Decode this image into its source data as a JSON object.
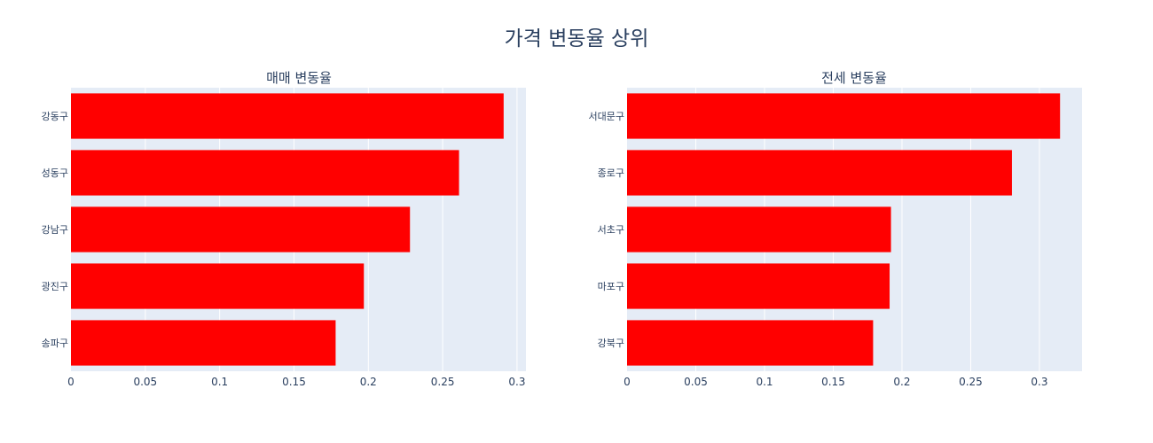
{
  "title": "가격 변동율 상위",
  "colors": {
    "bar": "#ff0000",
    "plot_bg": "#e5ecf6",
    "grid": "#ffffff",
    "text": "#2a3f5f"
  },
  "chart_data": [
    {
      "type": "bar",
      "orientation": "horizontal",
      "title": "매매 변동율",
      "categories": [
        "강동구",
        "성동구",
        "강남구",
        "광진구",
        "송파구"
      ],
      "values": [
        0.291,
        0.261,
        0.228,
        0.197,
        0.178
      ],
      "xlim": [
        0,
        0.306
      ],
      "xticks": [
        0,
        0.05,
        0.1,
        0.15,
        0.2,
        0.25,
        0.3
      ],
      "xtick_labels": [
        "0",
        "0.05",
        "0.1",
        "0.15",
        "0.2",
        "0.25",
        "0.3"
      ],
      "grid": true
    },
    {
      "type": "bar",
      "orientation": "horizontal",
      "title": "전세 변동율",
      "categories": [
        "서대문구",
        "종로구",
        "서초구",
        "마포구",
        "강북구"
      ],
      "values": [
        0.315,
        0.28,
        0.192,
        0.191,
        0.179
      ],
      "xlim": [
        0,
        0.331
      ],
      "xticks": [
        0,
        0.05,
        0.1,
        0.15,
        0.2,
        0.25,
        0.3
      ],
      "xtick_labels": [
        "0",
        "0.05",
        "0.1",
        "0.15",
        "0.2",
        "0.25",
        "0.3"
      ],
      "grid": true
    }
  ]
}
